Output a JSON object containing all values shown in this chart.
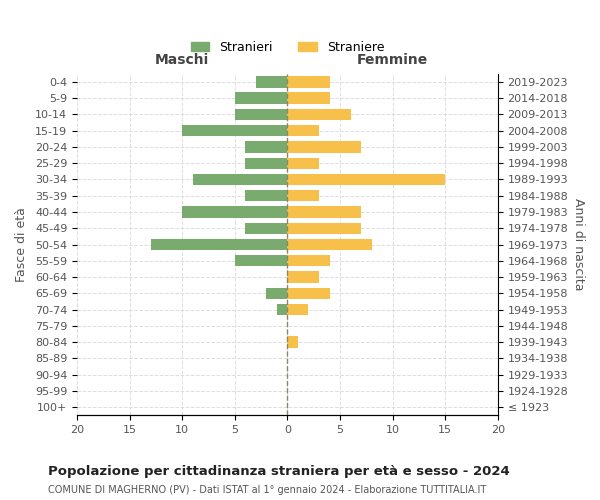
{
  "age_groups": [
    "100+",
    "95-99",
    "90-94",
    "85-89",
    "80-84",
    "75-79",
    "70-74",
    "65-69",
    "60-64",
    "55-59",
    "50-54",
    "45-49",
    "40-44",
    "35-39",
    "30-34",
    "25-29",
    "20-24",
    "15-19",
    "10-14",
    "5-9",
    "0-4"
  ],
  "birth_years": [
    "≤ 1923",
    "1924-1928",
    "1929-1933",
    "1934-1938",
    "1939-1943",
    "1944-1948",
    "1949-1953",
    "1954-1958",
    "1959-1963",
    "1964-1968",
    "1969-1973",
    "1974-1978",
    "1979-1983",
    "1984-1988",
    "1989-1993",
    "1994-1998",
    "1999-2003",
    "2004-2008",
    "2009-2013",
    "2014-2018",
    "2019-2023"
  ],
  "males": [
    0,
    0,
    0,
    0,
    0,
    0,
    1,
    2,
    0,
    5,
    13,
    4,
    10,
    4,
    9,
    4,
    4,
    10,
    5,
    5,
    3
  ],
  "females": [
    0,
    0,
    0,
    0,
    1,
    0,
    2,
    4,
    3,
    4,
    8,
    7,
    7,
    3,
    15,
    3,
    7,
    3,
    6,
    4,
    4
  ],
  "male_color": "#7aab6e",
  "female_color": "#f7c04a",
  "title": "Popolazione per cittadinanza straniera per età e sesso - 2024",
  "subtitle": "COMUNE DI MAGHERNO (PV) - Dati ISTAT al 1° gennaio 2024 - Elaborazione TUTTITALIA.IT",
  "xlabel_left": "Maschi",
  "xlabel_right": "Femmine",
  "ylabel_left": "Fasce di età",
  "ylabel_right": "Anni di nascita",
  "legend_male": "Stranieri",
  "legend_female": "Straniere",
  "xlim": 20,
  "background_color": "#ffffff",
  "grid_color": "#dddddd"
}
